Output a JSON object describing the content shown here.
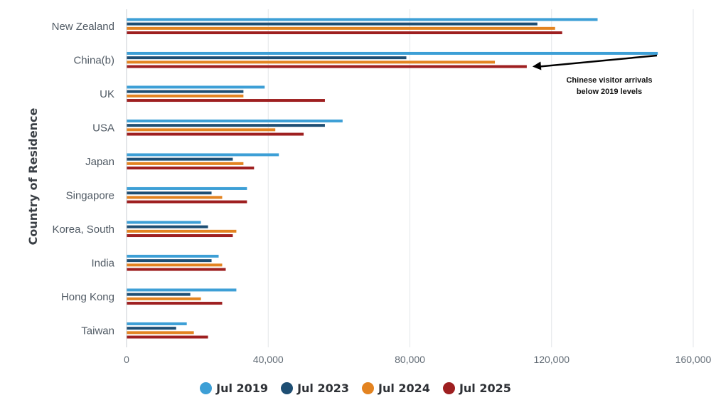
{
  "chart_data": {
    "type": "bar",
    "orientation": "horizontal",
    "title": "",
    "ylabel": "Country of Residence",
    "xlabel": "",
    "categories": [
      "New Zealand",
      "China(b)",
      "UK",
      "USA",
      "Japan",
      "Singapore",
      "Korea, South",
      "India",
      "Hong Kong",
      "Taiwan"
    ],
    "series": [
      {
        "name": "Jul 2019",
        "color": "#3d9fd6",
        "values": [
          133000,
          150000,
          39000,
          61000,
          43000,
          34000,
          21000,
          26000,
          31000,
          17000
        ]
      },
      {
        "name": "Jul 2023",
        "color": "#1e4e73",
        "values": [
          116000,
          79000,
          33000,
          56000,
          30000,
          24000,
          23000,
          24000,
          18000,
          14000
        ]
      },
      {
        "name": "Jul 2024",
        "color": "#e38320",
        "values": [
          121000,
          104000,
          33000,
          42000,
          33000,
          27000,
          31000,
          27000,
          21000,
          19000
        ]
      },
      {
        "name": "Jul 2025",
        "color": "#9e1f20",
        "values": [
          123000,
          113000,
          56000,
          50000,
          36000,
          34000,
          30000,
          28000,
          27000,
          23000
        ]
      }
    ],
    "xticks": [
      "0",
      "40,000",
      "80,000",
      "120,000",
      "160,000"
    ],
    "xlim": [
      0,
      160000
    ],
    "grid": "vertical",
    "legend_position": "bottom",
    "annotation": {
      "lines": [
        "Chinese visitor arrivals",
        "below 2019 levels"
      ],
      "category": "China(b)",
      "series": "Jul 2025"
    }
  }
}
